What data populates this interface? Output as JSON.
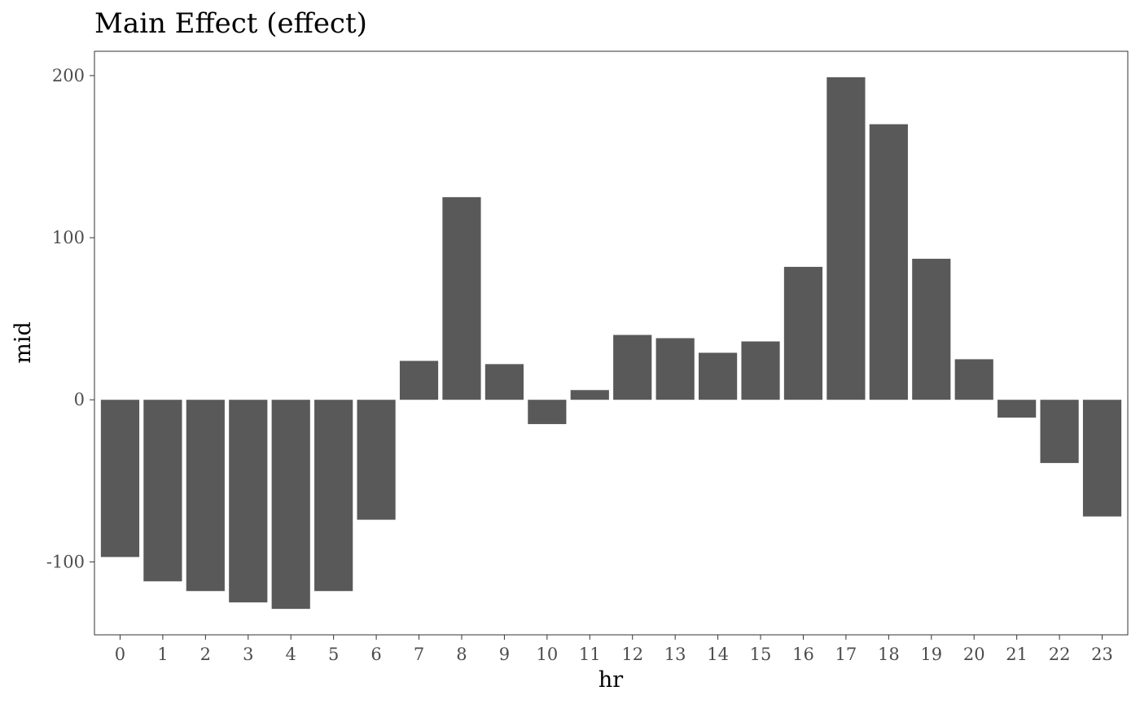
{
  "chart_data": {
    "type": "bar",
    "title": "Main Effect (effect)",
    "xlabel": "hr",
    "ylabel": "mid",
    "categories": [
      "0",
      "1",
      "2",
      "3",
      "4",
      "5",
      "6",
      "7",
      "8",
      "9",
      "10",
      "11",
      "12",
      "13",
      "14",
      "15",
      "16",
      "17",
      "18",
      "19",
      "20",
      "21",
      "22",
      "23"
    ],
    "values": [
      -97,
      -112,
      -118,
      -125,
      -129,
      -118,
      -74,
      24,
      125,
      22,
      -15,
      6,
      40,
      38,
      29,
      36,
      82,
      199,
      170,
      87,
      25,
      -11,
      -39,
      -72
    ],
    "ylim": [
      -145,
      215
    ],
    "yticks": [
      -100,
      0,
      100,
      200
    ],
    "ytick_labels": [
      "-100",
      "0",
      "100",
      "200"
    ],
    "grid": false,
    "bar_color": "#595959"
  }
}
